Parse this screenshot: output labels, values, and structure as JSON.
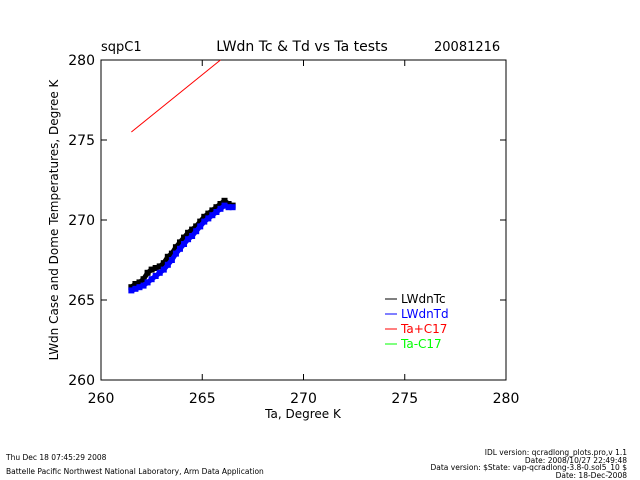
{
  "chart_data": {
    "type": "scatter",
    "site": "sqpC1",
    "title": "LWdn Tc & Td vs Ta tests",
    "date": "20081216",
    "xlabel": "Ta, Degree K",
    "ylabel": "LWdn Case and Dome Temperatures, Degree K",
    "xlim": [
      260,
      280
    ],
    "ylim": [
      260,
      280
    ],
    "xticks": [
      260,
      265,
      270,
      275,
      280
    ],
    "yticks": [
      260,
      265,
      270,
      275,
      280
    ],
    "legend_position": "right",
    "series": [
      {
        "name": "LWdnTc",
        "color": "#000000",
        "kind": "points",
        "x": [
          261.5,
          261.7,
          261.9,
          262.1,
          262.3,
          262.5,
          262.7,
          262.9,
          263.1,
          263.3,
          263.5,
          263.7,
          263.9,
          264.1,
          264.3,
          264.5,
          264.7,
          264.9,
          265.1,
          265.3,
          265.5,
          265.7,
          265.9,
          266.1,
          266.3,
          266.5
        ],
        "y": [
          265.8,
          266.0,
          266.1,
          266.3,
          266.7,
          266.9,
          267.0,
          267.1,
          267.3,
          267.7,
          267.9,
          268.3,
          268.6,
          268.9,
          269.2,
          269.4,
          269.6,
          269.9,
          270.2,
          270.4,
          270.6,
          270.8,
          271.0,
          271.2,
          271.0,
          270.9
        ]
      },
      {
        "name": "LWdnTd",
        "color": "#0000ff",
        "kind": "points",
        "x": [
          261.5,
          261.7,
          261.9,
          262.1,
          262.3,
          262.5,
          262.7,
          262.9,
          263.1,
          263.3,
          263.5,
          263.7,
          263.9,
          264.1,
          264.3,
          264.5,
          264.7,
          264.9,
          265.1,
          265.3,
          265.5,
          265.7,
          265.9,
          266.1,
          266.3,
          266.5
        ],
        "y": [
          265.6,
          265.7,
          265.8,
          265.9,
          266.1,
          266.3,
          266.5,
          266.7,
          266.9,
          267.2,
          267.5,
          267.9,
          268.2,
          268.5,
          268.8,
          269.0,
          269.3,
          269.6,
          269.9,
          270.1,
          270.3,
          270.5,
          270.7,
          270.9,
          270.8,
          270.8
        ]
      },
      {
        "name": "Ta+C17",
        "color": "#ff0000",
        "kind": "line",
        "x": [
          261.5,
          265.9
        ],
        "y": [
          275.5,
          280.0
        ]
      },
      {
        "name": "Ta-C17",
        "color": "#00ff00",
        "kind": "line",
        "x": [],
        "y": []
      }
    ]
  },
  "footer": {
    "timestamp": "Thu Dec 18 07:45:29 2008",
    "org": "Battelle Pacific Northwest National Laboratory, Arm Data Application",
    "idl_version": "IDL version: qcradlong_plots.pro,v 1.1",
    "idl_date": "Date: 2008/10/27 22:49:48",
    "data_version": "Data version: $State: vap-qcradlong-3.8-0.sol5_10 $",
    "data_date": "Date: 18-Dec-2008"
  }
}
